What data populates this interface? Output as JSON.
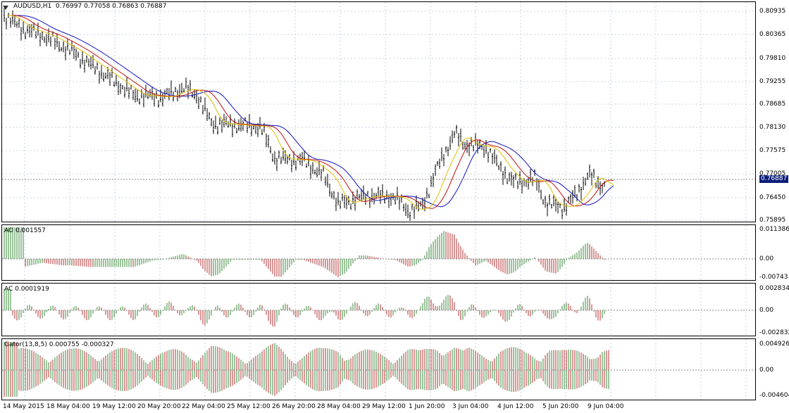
{
  "main": {
    "symbol": "AUDUSD,H1",
    "ohlc": "0.76997 0.77058 0.76863 0.76887",
    "current_price": "0.76887",
    "price_labels": [
      "0.80935",
      "0.80365",
      "0.79810",
      "0.79255",
      "0.78685",
      "0.78130",
      "0.77575",
      "0.77005",
      "0.76450",
      "0.75895"
    ]
  },
  "ao": {
    "title": "AO 0.001557",
    "labels": [
      "0.011386",
      "0.00",
      "-0.00743"
    ]
  },
  "ac": {
    "title": "AC 0.0001919",
    "labels": [
      "0.002834",
      "0.00",
      "-0.002832"
    ]
  },
  "gator": {
    "title": "Gator(13,8,5) 0.000755 -0.000327",
    "labels": [
      "0.004926",
      "0.00",
      "-0.004604"
    ]
  },
  "time_labels": [
    "14 May 2015",
    "18 May 04:00",
    "19 May 12:00",
    "20 May 20:00",
    "22 May 04:00",
    "25 May 12:00",
    "26 May 20:00",
    "28 May 04:00",
    "29 May 12:00",
    "1 Jun 20:00",
    "3 Jun 04:00",
    "4 Jun 12:00",
    "5 Jun 20:00",
    "9 Jun 04:00"
  ],
  "colors": {
    "bull": "#3a8a3a",
    "bear": "#b03030",
    "jaw": "#1010c0",
    "teeth": "#c01010",
    "lips": "#e0c000",
    "grid": "#c8d0e0",
    "axis": "#000000"
  }
}
